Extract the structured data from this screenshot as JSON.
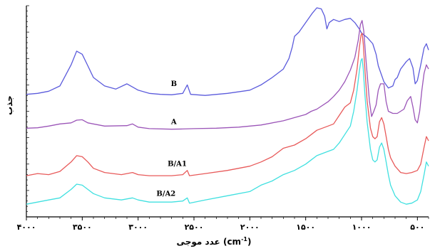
{
  "chart_data": {
    "type": "line",
    "xlabel": "عدد موجی (cm-1)",
    "ylabel": "جذب",
    "x_direction": "reversed",
    "xlim": [
      4000,
      400
    ],
    "ylim": [
      0,
      1
    ],
    "grid": false,
    "legend": "none",
    "x_ticks": [
      {
        "value": 4000,
        "label": "۴۰۰۰"
      },
      {
        "value": 3500,
        "label": "۳۵۰۰"
      },
      {
        "value": 3000,
        "label": "۳۰۰۰"
      },
      {
        "value": 2500,
        "label": "۲۵۰۰"
      },
      {
        "value": 2000,
        "label": "۲۰۰۰"
      },
      {
        "value": 1500,
        "label": "۱۵۰۰"
      },
      {
        "value": 1000,
        "label": "۱۰۰۰"
      },
      {
        "value": 500,
        "label": "۵۰۰"
      }
    ],
    "series": [
      {
        "name": "B",
        "color": "#5b5bdc",
        "points": [
          [
            4000,
            0.58
          ],
          [
            3900,
            0.585
          ],
          [
            3800,
            0.595
          ],
          [
            3700,
            0.62
          ],
          [
            3600,
            0.72
          ],
          [
            3550,
            0.785
          ],
          [
            3500,
            0.77
          ],
          [
            3450,
            0.715
          ],
          [
            3400,
            0.66
          ],
          [
            3300,
            0.62
          ],
          [
            3200,
            0.605
          ],
          [
            3100,
            0.63
          ],
          [
            3050,
            0.615
          ],
          [
            3000,
            0.6
          ],
          [
            2900,
            0.585
          ],
          [
            2800,
            0.58
          ],
          [
            2700,
            0.578
          ],
          [
            2600,
            0.585
          ],
          [
            2560,
            0.625
          ],
          [
            2530,
            0.58
          ],
          [
            2400,
            0.575
          ],
          [
            2200,
            0.585
          ],
          [
            2000,
            0.6
          ],
          [
            1900,
            0.625
          ],
          [
            1800,
            0.66
          ],
          [
            1700,
            0.7
          ],
          [
            1650,
            0.75
          ],
          [
            1620,
            0.805
          ],
          [
            1600,
            0.855
          ],
          [
            1560,
            0.875
          ],
          [
            1500,
            0.92
          ],
          [
            1440,
            0.965
          ],
          [
            1400,
            0.99
          ],
          [
            1360,
            0.985
          ],
          [
            1330,
            0.95
          ],
          [
            1310,
            0.89
          ],
          [
            1290,
            0.92
          ],
          [
            1250,
            0.935
          ],
          [
            1200,
            0.925
          ],
          [
            1150,
            0.935
          ],
          [
            1100,
            0.94
          ],
          [
            1060,
            0.92
          ],
          [
            1020,
            0.89
          ],
          [
            1000,
            0.87
          ],
          [
            950,
            0.85
          ],
          [
            900,
            0.82
          ],
          [
            870,
            0.77
          ],
          [
            850,
            0.715
          ],
          [
            820,
            0.67
          ],
          [
            800,
            0.64
          ],
          [
            760,
            0.61
          ],
          [
            720,
            0.62
          ],
          [
            700,
            0.65
          ],
          [
            680,
            0.66
          ],
          [
            650,
            0.7
          ],
          [
            600,
            0.735
          ],
          [
            570,
            0.75
          ],
          [
            540,
            0.705
          ],
          [
            520,
            0.63
          ],
          [
            500,
            0.645
          ],
          [
            470,
            0.72
          ],
          [
            440,
            0.8
          ],
          [
            420,
            0.82
          ],
          [
            400,
            0.79
          ]
        ]
      },
      {
        "name": "A",
        "color": "#9b55b8",
        "points": [
          [
            4000,
            0.42
          ],
          [
            3900,
            0.422
          ],
          [
            3800,
            0.43
          ],
          [
            3700,
            0.44
          ],
          [
            3600,
            0.445
          ],
          [
            3550,
            0.458
          ],
          [
            3500,
            0.46
          ],
          [
            3450,
            0.445
          ],
          [
            3300,
            0.43
          ],
          [
            3100,
            0.432
          ],
          [
            3050,
            0.44
          ],
          [
            3000,
            0.425
          ],
          [
            2900,
            0.418
          ],
          [
            2700,
            0.415
          ],
          [
            2600,
            0.416
          ],
          [
            2500,
            0.418
          ],
          [
            2300,
            0.42
          ],
          [
            2100,
            0.425
          ],
          [
            1900,
            0.435
          ],
          [
            1700,
            0.455
          ],
          [
            1600,
            0.47
          ],
          [
            1500,
            0.485
          ],
          [
            1450,
            0.5
          ],
          [
            1400,
            0.51
          ],
          [
            1300,
            0.545
          ],
          [
            1250,
            0.57
          ],
          [
            1200,
            0.6
          ],
          [
            1150,
            0.64
          ],
          [
            1100,
            0.695
          ],
          [
            1060,
            0.755
          ],
          [
            1030,
            0.835
          ],
          [
            1010,
            0.91
          ],
          [
            995,
            0.93
          ],
          [
            980,
            0.88
          ],
          [
            960,
            0.74
          ],
          [
            930,
            0.55
          ],
          [
            910,
            0.475
          ],
          [
            890,
            0.5
          ],
          [
            870,
            0.53
          ],
          [
            850,
            0.6
          ],
          [
            830,
            0.63
          ],
          [
            800,
            0.63
          ],
          [
            780,
            0.545
          ],
          [
            760,
            0.5
          ],
          [
            720,
            0.49
          ],
          [
            680,
            0.49
          ],
          [
            650,
            0.5
          ],
          [
            620,
            0.51
          ],
          [
            590,
            0.55
          ],
          [
            560,
            0.57
          ],
          [
            540,
            0.52
          ],
          [
            520,
            0.46
          ],
          [
            500,
            0.445
          ],
          [
            480,
            0.5
          ],
          [
            460,
            0.6
          ],
          [
            440,
            0.68
          ],
          [
            420,
            0.72
          ],
          [
            400,
            0.7
          ]
        ]
      },
      {
        "name": "B/A1",
        "color": "#e85a5a",
        "points": [
          [
            4000,
            0.195
          ],
          [
            3900,
            0.205
          ],
          [
            3800,
            0.2
          ],
          [
            3700,
            0.215
          ],
          [
            3600,
            0.26
          ],
          [
            3550,
            0.29
          ],
          [
            3500,
            0.285
          ],
          [
            3450,
            0.26
          ],
          [
            3400,
            0.23
          ],
          [
            3300,
            0.21
          ],
          [
            3150,
            0.2
          ],
          [
            3050,
            0.21
          ],
          [
            3000,
            0.2
          ],
          [
            2900,
            0.195
          ],
          [
            2700,
            0.195
          ],
          [
            2600,
            0.2
          ],
          [
            2560,
            0.22
          ],
          [
            2540,
            0.195
          ],
          [
            2400,
            0.205
          ],
          [
            2200,
            0.22
          ],
          [
            2000,
            0.24
          ],
          [
            1900,
            0.26
          ],
          [
            1800,
            0.285
          ],
          [
            1700,
            0.325
          ],
          [
            1600,
            0.34
          ],
          [
            1500,
            0.37
          ],
          [
            1450,
            0.39
          ],
          [
            1400,
            0.41
          ],
          [
            1300,
            0.43
          ],
          [
            1250,
            0.44
          ],
          [
            1200,
            0.48
          ],
          [
            1150,
            0.52
          ],
          [
            1100,
            0.54
          ],
          [
            1070,
            0.6
          ],
          [
            1040,
            0.7
          ],
          [
            1020,
            0.8
          ],
          [
            1005,
            0.86
          ],
          [
            995,
            0.87
          ],
          [
            985,
            0.82
          ],
          [
            970,
            0.7
          ],
          [
            950,
            0.55
          ],
          [
            920,
            0.42
          ],
          [
            900,
            0.38
          ],
          [
            880,
            0.37
          ],
          [
            860,
            0.38
          ],
          [
            840,
            0.45
          ],
          [
            820,
            0.47
          ],
          [
            800,
            0.44
          ],
          [
            780,
            0.38
          ],
          [
            760,
            0.32
          ],
          [
            740,
            0.28
          ],
          [
            700,
            0.24
          ],
          [
            650,
            0.21
          ],
          [
            600,
            0.205
          ],
          [
            550,
            0.21
          ],
          [
            500,
            0.22
          ],
          [
            470,
            0.25
          ],
          [
            440,
            0.33
          ],
          [
            420,
            0.38
          ],
          [
            400,
            0.36
          ]
        ]
      },
      {
        "name": "B/A2",
        "color": "#40e0e0",
        "points": [
          [
            4000,
            0.06
          ],
          [
            3900,
            0.07
          ],
          [
            3800,
            0.08
          ],
          [
            3700,
            0.09
          ],
          [
            3600,
            0.13
          ],
          [
            3550,
            0.155
          ],
          [
            3500,
            0.15
          ],
          [
            3450,
            0.13
          ],
          [
            3400,
            0.11
          ],
          [
            3300,
            0.09
          ],
          [
            3150,
            0.08
          ],
          [
            3050,
            0.09
          ],
          [
            3000,
            0.08
          ],
          [
            2900,
            0.07
          ],
          [
            2700,
            0.07
          ],
          [
            2600,
            0.075
          ],
          [
            2560,
            0.09
          ],
          [
            2540,
            0.065
          ],
          [
            2400,
            0.08
          ],
          [
            2200,
            0.1
          ],
          [
            2000,
            0.12
          ],
          [
            1900,
            0.15
          ],
          [
            1800,
            0.17
          ],
          [
            1700,
            0.2
          ],
          [
            1600,
            0.22
          ],
          [
            1500,
            0.25
          ],
          [
            1450,
            0.27
          ],
          [
            1400,
            0.29
          ],
          [
            1300,
            0.31
          ],
          [
            1250,
            0.32
          ],
          [
            1200,
            0.35
          ],
          [
            1150,
            0.39
          ],
          [
            1100,
            0.43
          ],
          [
            1070,
            0.5
          ],
          [
            1040,
            0.6
          ],
          [
            1020,
            0.69
          ],
          [
            1005,
            0.74
          ],
          [
            995,
            0.75
          ],
          [
            985,
            0.7
          ],
          [
            970,
            0.58
          ],
          [
            950,
            0.45
          ],
          [
            920,
            0.32
          ],
          [
            900,
            0.27
          ],
          [
            880,
            0.26
          ],
          [
            860,
            0.27
          ],
          [
            840,
            0.33
          ],
          [
            820,
            0.35
          ],
          [
            800,
            0.32
          ],
          [
            780,
            0.26
          ],
          [
            760,
            0.2
          ],
          [
            740,
            0.15
          ],
          [
            700,
            0.1
          ],
          [
            650,
            0.07
          ],
          [
            600,
            0.06
          ],
          [
            550,
            0.065
          ],
          [
            500,
            0.08
          ],
          [
            470,
            0.12
          ],
          [
            440,
            0.2
          ],
          [
            420,
            0.26
          ],
          [
            400,
            0.24
          ]
        ]
      }
    ],
    "annotations": [
      {
        "text": "B",
        "x": 2680,
        "y": 0.62
      },
      {
        "text": "A",
        "x": 2680,
        "y": 0.44
      },
      {
        "text": "B/A1",
        "x": 2650,
        "y": 0.24
      },
      {
        "text": "B/A2",
        "x": 2750,
        "y": 0.1
      }
    ]
  }
}
